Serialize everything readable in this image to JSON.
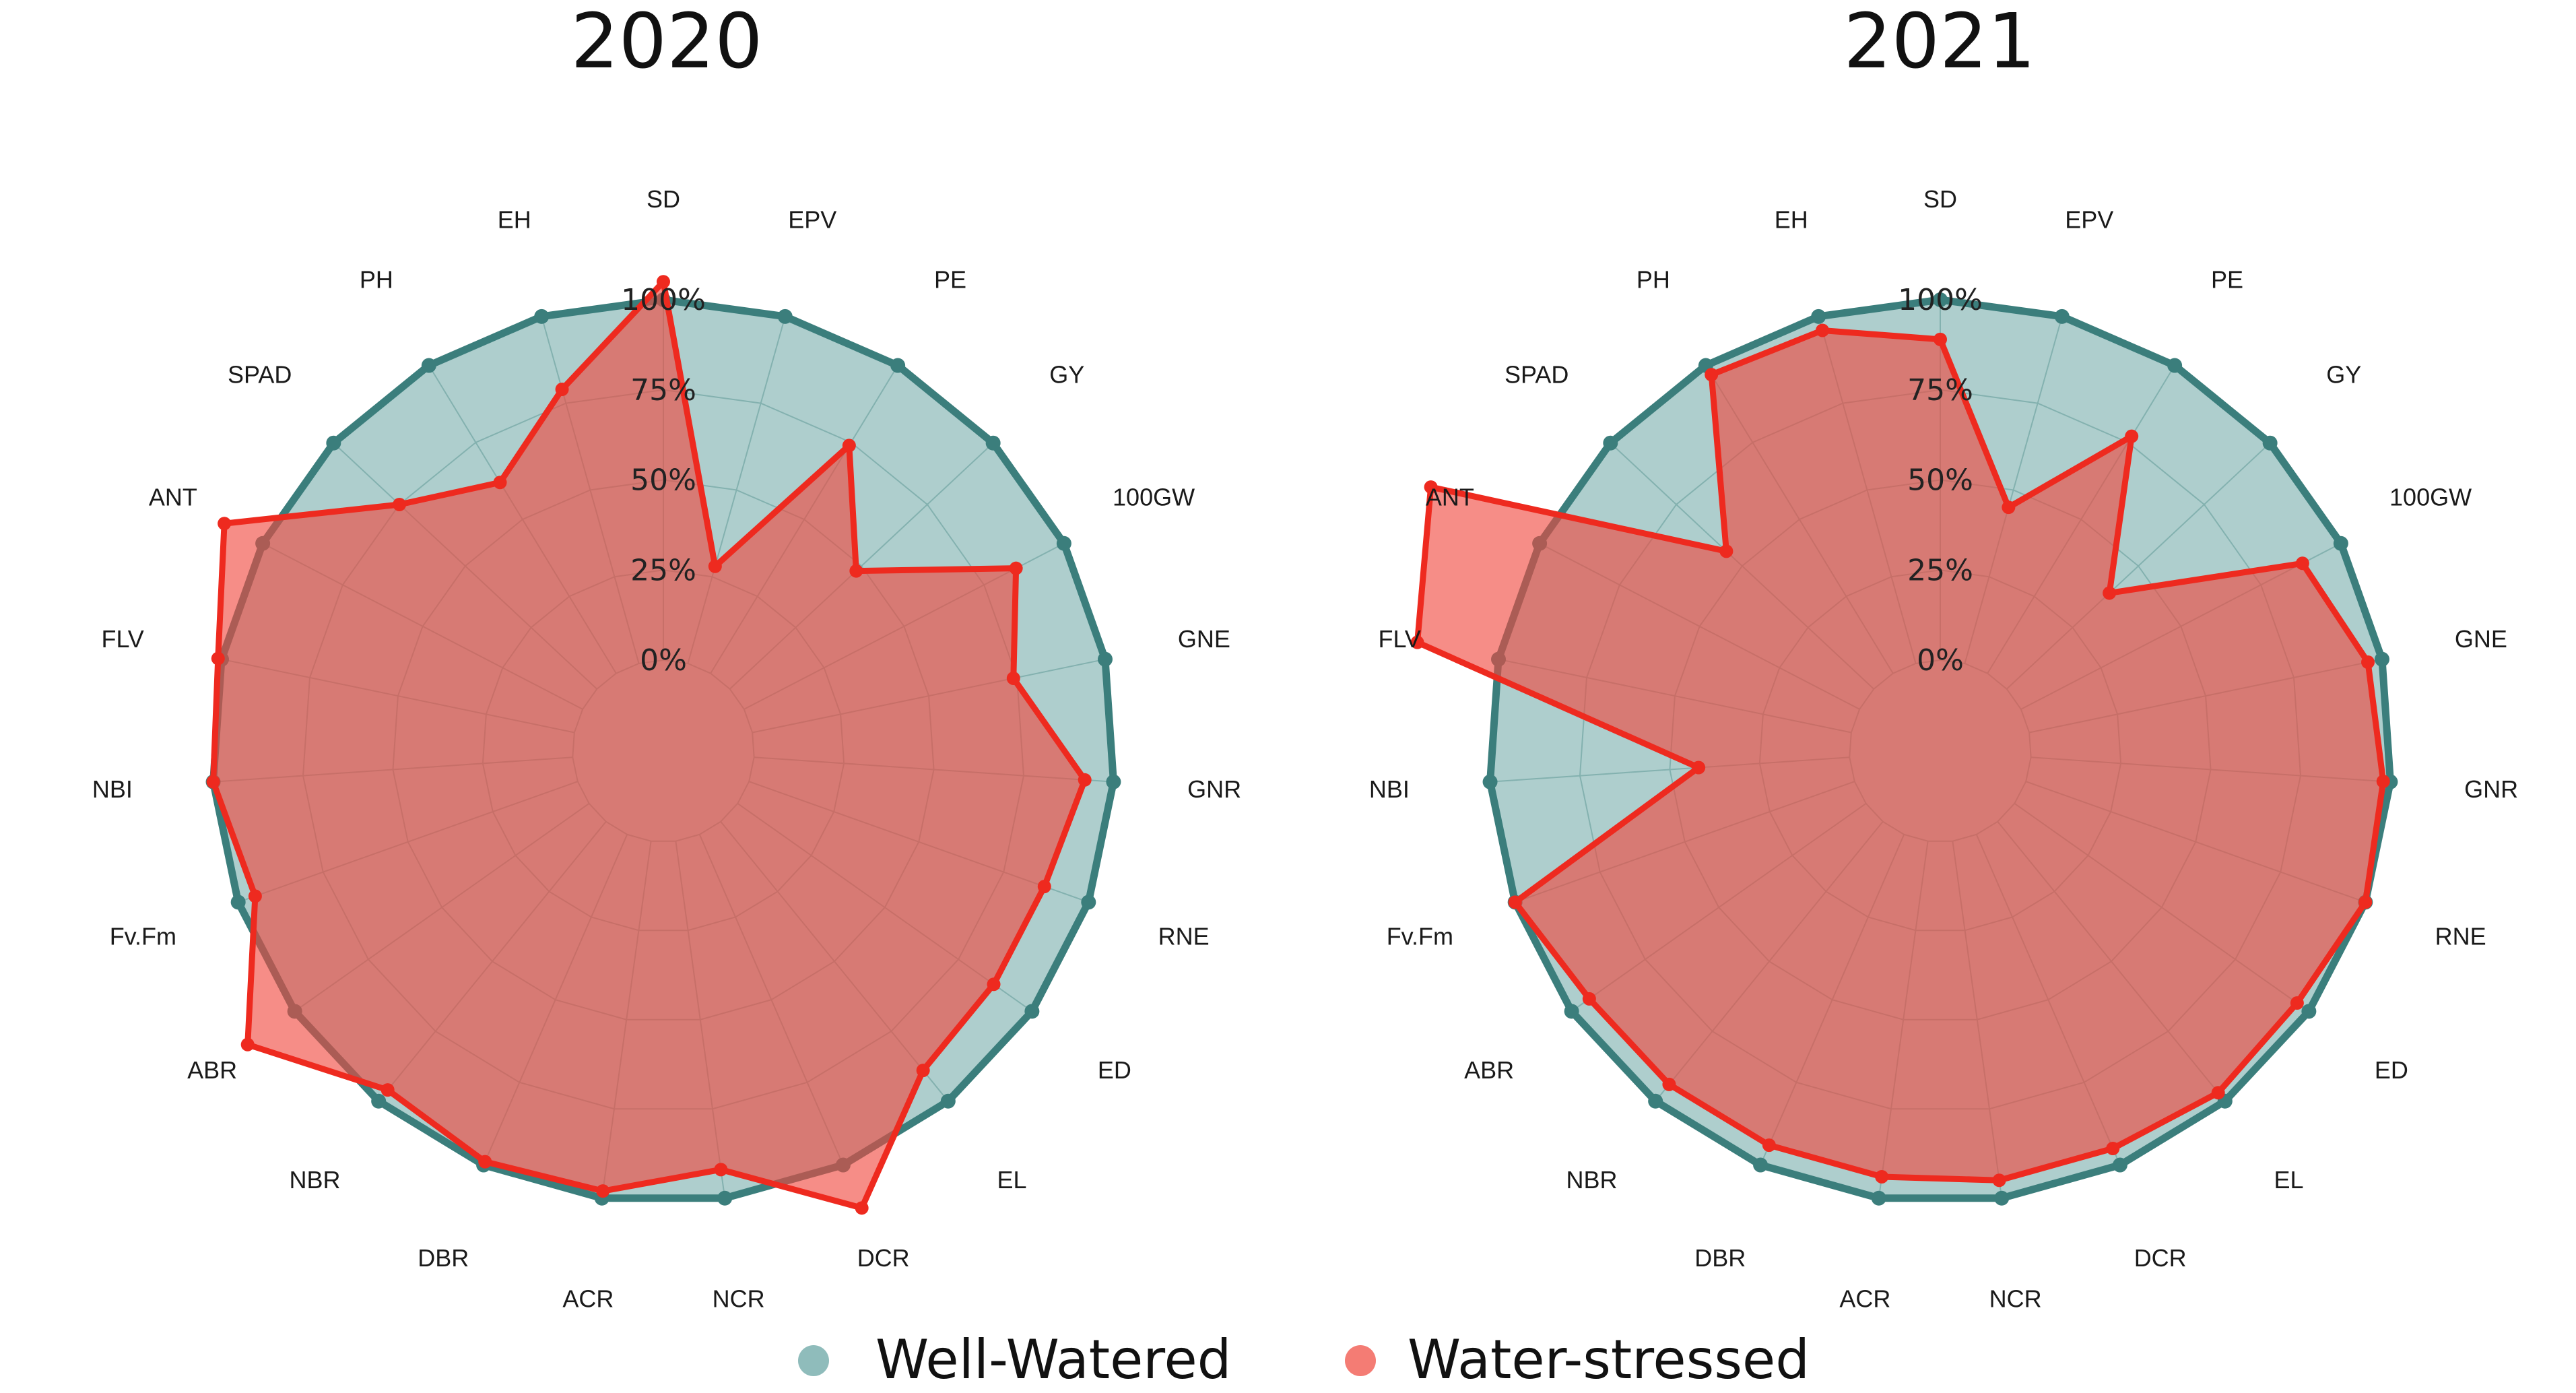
{
  "legend": [
    {
      "label": "Well-Watered",
      "color": "#8fbcbb"
    },
    {
      "label": "Water-stressed",
      "color": "#f47c74"
    }
  ],
  "colors": {
    "ww_fill": "#5e9e9b",
    "ww_line": "#3b7e7c",
    "ws_fill": "#f0473d",
    "ws_line": "#ee2a1f",
    "grid": "#a9c4c2"
  },
  "chart_data": [
    {
      "type": "radar",
      "title": "2020",
      "axes": [
        "SD",
        "EPV",
        "PE",
        "GY",
        "100GW",
        "GNE",
        "GNR",
        "RNE",
        "ED",
        "EL",
        "DCR",
        "NCR",
        "ACR",
        "DBR",
        "NBR",
        "ABR",
        "Fv.Fm",
        "NBI",
        "FLV",
        "ANT",
        "SPAD",
        "PH",
        "EH"
      ],
      "tick_labels": [
        "0%",
        "25%",
        "50%",
        "75%",
        "100%"
      ],
      "rlim": [
        0,
        100
      ],
      "series": [
        {
          "name": "Well-Watered",
          "values": [
            100,
            100,
            100,
            100,
            100,
            100,
            100,
            100,
            100,
            100,
            100,
            100,
            100,
            100,
            100,
            100,
            100,
            100,
            100,
            100,
            100,
            100,
            100
          ]
        },
        {
          "name": "Water-stressed",
          "values": [
            105,
            28,
            74,
            48,
            85,
            74,
            92,
            87,
            87,
            89,
            113,
            92,
            98,
            99,
            96,
            116,
            95,
            100,
            101,
            112,
            75,
            62,
            79
          ]
        }
      ]
    },
    {
      "type": "radar",
      "title": "2021",
      "axes": [
        "SD",
        "EPV",
        "PE",
        "GY",
        "100GW",
        "GNE",
        "GNR",
        "RNE",
        "ED",
        "EL",
        "DCR",
        "NCR",
        "ACR",
        "DBR",
        "NBR",
        "ABR",
        "Fv.Fm",
        "NBI",
        "FLV",
        "ANT",
        "SPAD",
        "PH",
        "EH"
      ],
      "tick_labels": [
        "0%",
        "25%",
        "50%",
        "75%",
        "100%"
      ],
      "rlim": [
        0,
        100
      ],
      "series": [
        {
          "name": "Well-Watered",
          "values": [
            100,
            100,
            100,
            100,
            100,
            100,
            100,
            100,
            100,
            100,
            100,
            100,
            100,
            100,
            100,
            100,
            100,
            100,
            100,
            100,
            100,
            100,
            100
          ]
        },
        {
          "name": "Water-stressed",
          "values": [
            89,
            45,
            77,
            39,
            88,
            96,
            98,
            100,
            96,
            97,
            95,
            95,
            94,
            94,
            94,
            94,
            100,
            42,
            123,
            134,
            56,
            97,
            96
          ]
        }
      ]
    }
  ]
}
